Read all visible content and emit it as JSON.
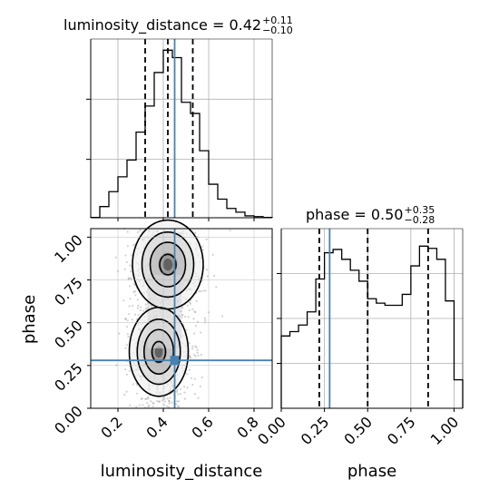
{
  "chart_data": [
    {
      "type": "histogram",
      "panel": "luminosity_distance marginal",
      "title": {
        "main": "luminosity_distance = 0.42",
        "sup": "+0.11",
        "sub": "−0.10"
      },
      "xlim": [
        0.08,
        0.88
      ],
      "bins": [
        0.08,
        0.12,
        0.16,
        0.2,
        0.24,
        0.28,
        0.32,
        0.36,
        0.4,
        0.44,
        0.48,
        0.52,
        0.56,
        0.6,
        0.64,
        0.68,
        0.72,
        0.76,
        0.8,
        0.84,
        0.88
      ],
      "counts": [
        1,
        30,
        70,
        110,
        155,
        230,
        300,
        390,
        450,
        430,
        310,
        280,
        180,
        90,
        50,
        25,
        15,
        5,
        3,
        1
      ],
      "ymax": 480,
      "quantiles": [
        0.32,
        0.42,
        0.53
      ],
      "truth": 0.45,
      "grid": true,
      "color_truth": "#4682b4"
    },
    {
      "type": "histogram",
      "panel": "phase marginal",
      "title": {
        "main": "phase = 0.50",
        "sup": "+0.35",
        "sub": "−0.28"
      },
      "xlim": [
        0.0,
        1.05
      ],
      "bins": [
        0.0,
        0.05,
        0.1,
        0.15,
        0.2,
        0.25,
        0.3,
        0.35,
        0.4,
        0.45,
        0.5,
        0.55,
        0.6,
        0.65,
        0.7,
        0.75,
        0.8,
        0.85,
        0.9,
        0.95,
        1.0,
        1.05
      ],
      "counts": [
        330,
        350,
        380,
        440,
        590,
        710,
        725,
        680,
        630,
        580,
        500,
        480,
        470,
        470,
        520,
        650,
        740,
        730,
        680,
        490,
        130
      ],
      "ymax": 820,
      "quantiles": [
        0.22,
        0.5,
        0.85
      ],
      "truth": 0.28,
      "grid": true,
      "color_truth": "#4682b4"
    },
    {
      "type": "contour",
      "panel": "luminosity_distance vs phase",
      "xlabel": "luminosity_distance",
      "ylabel": "phase",
      "xlim": [
        0.08,
        0.88
      ],
      "ylim": [
        0.0,
        1.05
      ],
      "modes": [
        {
          "x": 0.42,
          "y": 0.84,
          "sx": 0.06,
          "sy": 0.1
        },
        {
          "x": 0.38,
          "y": 0.33,
          "sx": 0.05,
          "sy": 0.1
        }
      ],
      "truth": {
        "x": 0.45,
        "y": 0.28
      },
      "grid": true,
      "color_truth": "#4682b4"
    }
  ],
  "ticks": {
    "lum_x": [
      "0.2",
      "0.4",
      "0.6",
      "0.8"
    ],
    "lum_x_values": [
      0.2,
      0.4,
      0.6,
      0.8
    ],
    "phase_x": [
      "0.00",
      "0.25",
      "0.50",
      "0.75",
      "1.00"
    ],
    "phase_x_values": [
      0.0,
      0.25,
      0.5,
      0.75,
      1.0
    ],
    "phase_y": [
      "0.00",
      "0.25",
      "0.50",
      "0.75",
      "1.00"
    ],
    "phase_y_values": [
      0.0,
      0.25,
      0.5,
      0.75,
      1.0
    ]
  },
  "axis_labels": {
    "bottom_left": "luminosity_distance",
    "bottom_right": "phase",
    "left": "phase"
  }
}
